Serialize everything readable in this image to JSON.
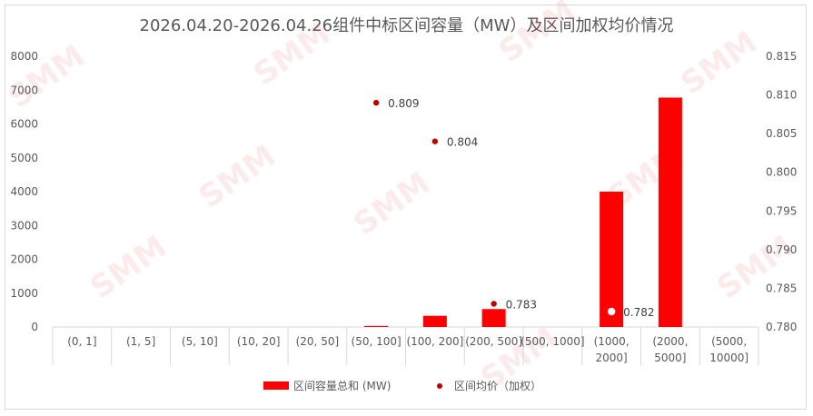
{
  "chart_data": {
    "type": "bar",
    "title": "2026.04.20-2026.04.26组件中标区间容量（MW）及区间加权均价情况",
    "categories": [
      [
        "(0, 1]"
      ],
      [
        "(1, 5]"
      ],
      [
        "(5, 10]"
      ],
      [
        "(10, 20]"
      ],
      [
        "(20, 50]"
      ],
      [
        "(50, 100]"
      ],
      [
        "(100, 200]"
      ],
      [
        "(200, 500]"
      ],
      [
        "(500, 1000]"
      ],
      [
        "(1000,",
        "2000]"
      ],
      [
        "(2000,",
        "5000]"
      ],
      [
        "(5000,",
        "10000]"
      ]
    ],
    "series": [
      {
        "name": "区间容量总和 (MW)",
        "type": "bar",
        "axis": "left",
        "color": "#ff0000",
        "values": [
          0,
          0,
          0,
          0,
          0,
          30,
          330,
          530,
          0,
          4000,
          6780,
          0
        ]
      },
      {
        "name": "区间均价（加权）",
        "type": "scatter",
        "axis": "right",
        "color": "#c00000",
        "values": [
          null,
          null,
          null,
          null,
          null,
          0.809,
          0.804,
          null,
          null,
          0.782,
          null,
          null
        ],
        "labels": [
          "",
          "",
          "",
          "",
          "",
          "0.809",
          "0.804",
          "0.783",
          "",
          "0.782",
          "",
          ""
        ],
        "extra_points": [
          {
            "index": 7,
            "value": 0.783
          }
        ]
      }
    ],
    "y_left": {
      "min": 0,
      "max": 8000,
      "ticks": [
        "0",
        "1000",
        "2000",
        "3000",
        "4000",
        "5000",
        "6000",
        "7000",
        "8000"
      ]
    },
    "y_right": {
      "min": 0.78,
      "max": 0.815,
      "ticks": [
        "0.780",
        "0.785",
        "0.790",
        "0.795",
        "0.800",
        "0.805",
        "0.810",
        "0.815"
      ]
    },
    "legend_position": "bottom",
    "grid": false
  },
  "watermark": "SMM"
}
